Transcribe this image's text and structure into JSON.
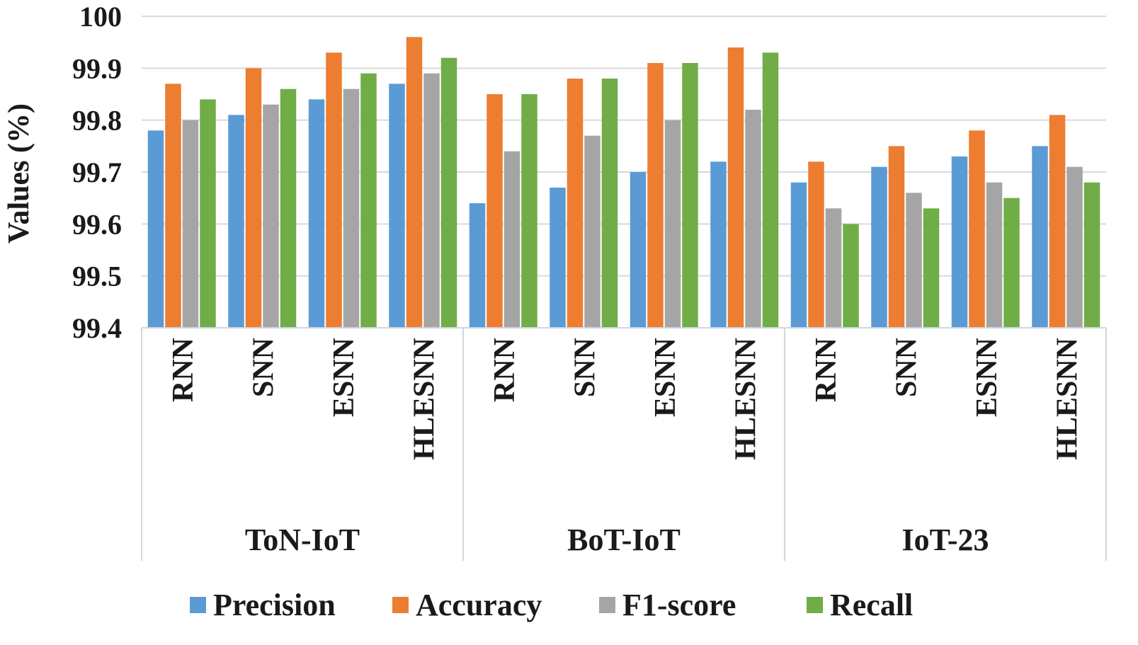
{
  "chart_data": {
    "type": "bar",
    "title": "",
    "ylabel": "Values (%)",
    "xlabel": "",
    "ylim": [
      99.4,
      100
    ],
    "yticks": [
      "99.4",
      "99.5",
      "99.6",
      "99.7",
      "99.8",
      "99.9",
      "100"
    ],
    "grid": true,
    "legend_position": "bottom",
    "groups": [
      "ToN-IoT",
      "BoT-IoT",
      "IoT-23"
    ],
    "models": [
      "RNN",
      "SNN",
      "ESNN",
      "HLESNN"
    ],
    "series": [
      {
        "name": "Precision",
        "color": "#5b9bd5",
        "values": [
          99.78,
          99.81,
          99.84,
          99.87,
          99.64,
          99.67,
          99.7,
          99.72,
          99.68,
          99.71,
          99.73,
          99.75
        ]
      },
      {
        "name": "Accuracy",
        "color": "#ed7d31",
        "values": [
          99.87,
          99.9,
          99.93,
          99.96,
          99.85,
          99.88,
          99.91,
          99.94,
          99.72,
          99.75,
          99.78,
          99.81
        ]
      },
      {
        "name": "F1-score",
        "color": "#a5a5a5",
        "values": [
          99.8,
          99.83,
          99.86,
          99.89,
          99.74,
          99.77,
          99.8,
          99.82,
          99.63,
          99.66,
          99.68,
          99.71
        ]
      },
      {
        "name": "Recall",
        "color": "#70ad47",
        "values": [
          99.84,
          99.86,
          99.89,
          99.92,
          99.85,
          99.88,
          99.91,
          99.93,
          99.6,
          99.63,
          99.65,
          99.68
        ]
      }
    ]
  }
}
